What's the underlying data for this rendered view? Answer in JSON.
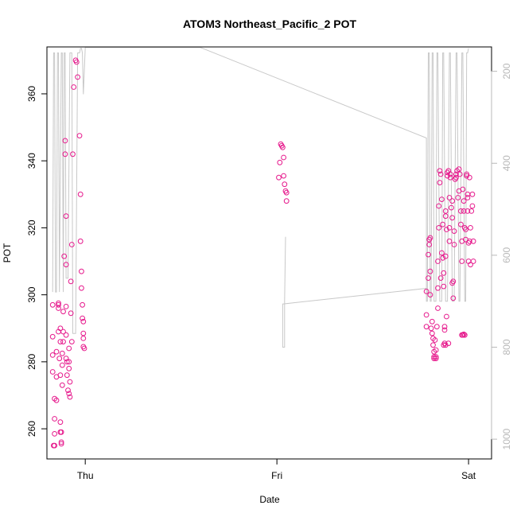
{
  "chart_data": {
    "type": "scatter",
    "title": "ATOM3 Northeast_Pacific_2 POT",
    "xlabel": "Date",
    "ylabel": "POT",
    "x_ticks": [
      {
        "label": "Thu",
        "value": 1.0
      },
      {
        "label": "Fri",
        "value": 2.0
      },
      {
        "label": "Sat",
        "value": 3.0
      }
    ],
    "xlim": [
      0.8,
      3.12
    ],
    "ylim": [
      251,
      374
    ],
    "y_ticks": [
      260,
      280,
      300,
      320,
      340,
      360
    ],
    "right_axis": {
      "ticks": [
        200,
        400,
        600,
        800,
        1000
      ],
      "lim_top": 147,
      "lim_bottom": 1043,
      "color": "#b8b8b8"
    },
    "grid": false,
    "series": [
      {
        "kind": "points",
        "color": "#e6198c",
        "points": [
          [
            0.83,
            297
          ],
          [
            0.83,
            287.5
          ],
          [
            0.83,
            282
          ],
          [
            0.83,
            277
          ],
          [
            0.84,
            269
          ],
          [
            0.84,
            263
          ],
          [
            0.84,
            258.5
          ],
          [
            0.84,
            255
          ],
          [
            0.835,
            255
          ],
          [
            0.85,
            275.5
          ],
          [
            0.85,
            268.5
          ],
          [
            0.85,
            283
          ],
          [
            0.86,
            289
          ],
          [
            0.86,
            297.5
          ],
          [
            0.86,
            297
          ],
          [
            0.86,
            296
          ],
          [
            0.865,
            281
          ],
          [
            0.87,
            290
          ],
          [
            0.87,
            286
          ],
          [
            0.87,
            276
          ],
          [
            0.87,
            262
          ],
          [
            0.87,
            259
          ],
          [
            0.875,
            259
          ],
          [
            0.875,
            256
          ],
          [
            0.875,
            255.5
          ],
          [
            0.88,
            282.5
          ],
          [
            0.88,
            279
          ],
          [
            0.88,
            273
          ],
          [
            0.885,
            295
          ],
          [
            0.885,
            289
          ],
          [
            0.885,
            286
          ],
          [
            0.89,
            311.5
          ],
          [
            0.895,
            346
          ],
          [
            0.895,
            342
          ],
          [
            0.9,
            323.5
          ],
          [
            0.9,
            309
          ],
          [
            0.9,
            296.5
          ],
          [
            0.9,
            288
          ],
          [
            0.9,
            281
          ],
          [
            0.905,
            280
          ],
          [
            0.905,
            276
          ],
          [
            0.91,
            271.5
          ],
          [
            0.915,
            284
          ],
          [
            0.915,
            280
          ],
          [
            0.915,
            278
          ],
          [
            0.915,
            270.5
          ],
          [
            0.92,
            274
          ],
          [
            0.92,
            269.5
          ],
          [
            0.925,
            304
          ],
          [
            0.925,
            294.5
          ],
          [
            0.93,
            315
          ],
          [
            0.93,
            286
          ],
          [
            0.935,
            342
          ],
          [
            0.94,
            362
          ],
          [
            0.95,
            370
          ],
          [
            0.955,
            369.5
          ],
          [
            0.96,
            365
          ],
          [
            0.97,
            347.5
          ],
          [
            0.975,
            330
          ],
          [
            0.975,
            316
          ],
          [
            0.98,
            307
          ],
          [
            0.98,
            302
          ],
          [
            0.985,
            297
          ],
          [
            0.985,
            293
          ],
          [
            0.99,
            292
          ],
          [
            0.99,
            288.5
          ],
          [
            0.99,
            287
          ],
          [
            0.99,
            284.5
          ],
          [
            0.995,
            284
          ],
          [
            2.02,
            345
          ],
          [
            2.025,
            344.5
          ],
          [
            2.03,
            344
          ],
          [
            2.015,
            339.5
          ],
          [
            2.035,
            341
          ],
          [
            2.01,
            335
          ],
          [
            2.035,
            335.5
          ],
          [
            2.04,
            333
          ],
          [
            2.045,
            331
          ],
          [
            2.05,
            330.5
          ],
          [
            2.05,
            328
          ],
          [
            2.78,
            290.5
          ],
          [
            2.78,
            294
          ],
          [
            2.78,
            301
          ],
          [
            2.79,
            305
          ],
          [
            2.79,
            312
          ],
          [
            2.795,
            315
          ],
          [
            2.795,
            316.5
          ],
          [
            2.8,
            317
          ],
          [
            2.8,
            307
          ],
          [
            2.8,
            300
          ],
          [
            2.805,
            290
          ],
          [
            2.81,
            292
          ],
          [
            2.81,
            288.5
          ],
          [
            2.815,
            287
          ],
          [
            2.815,
            285
          ],
          [
            2.82,
            283
          ],
          [
            2.82,
            281.5
          ],
          [
            2.82,
            281
          ],
          [
            2.825,
            286.5
          ],
          [
            2.83,
            283.5
          ],
          [
            2.83,
            281
          ],
          [
            2.83,
            281.5
          ],
          [
            2.835,
            290.5
          ],
          [
            2.84,
            296
          ],
          [
            2.84,
            302
          ],
          [
            2.84,
            310
          ],
          [
            2.845,
            320
          ],
          [
            2.845,
            326.5
          ],
          [
            2.85,
            333.5
          ],
          [
            2.85,
            337
          ],
          [
            2.855,
            336
          ],
          [
            2.855,
            305
          ],
          [
            2.86,
            328.5
          ],
          [
            2.86,
            312.5
          ],
          [
            2.865,
            321
          ],
          [
            2.865,
            311
          ],
          [
            2.87,
            306.5
          ],
          [
            2.87,
            302.5
          ],
          [
            2.875,
            289.5
          ],
          [
            2.875,
            290.5
          ],
          [
            2.88,
            325
          ],
          [
            2.88,
            323.5
          ],
          [
            2.88,
            311.5
          ],
          [
            2.885,
            319.5
          ],
          [
            2.885,
            293.5
          ],
          [
            2.89,
            336.5
          ],
          [
            2.89,
            335.5
          ],
          [
            2.895,
            337
          ],
          [
            2.9,
            329
          ],
          [
            2.9,
            320
          ],
          [
            2.9,
            316
          ],
          [
            2.905,
            336
          ],
          [
            2.905,
            335
          ],
          [
            2.91,
            326
          ],
          [
            2.915,
            328
          ],
          [
            2.915,
            323
          ],
          [
            2.915,
            303.5
          ],
          [
            2.92,
            299
          ],
          [
            2.92,
            304
          ],
          [
            2.925,
            315
          ],
          [
            2.925,
            319
          ],
          [
            2.93,
            334.5
          ],
          [
            2.935,
            336
          ],
          [
            2.935,
            335
          ],
          [
            2.94,
            337
          ],
          [
            2.945,
            329
          ],
          [
            2.95,
            331
          ],
          [
            2.95,
            337.5
          ],
          [
            2.955,
            336
          ],
          [
            2.96,
            325
          ],
          [
            2.96,
            321
          ],
          [
            2.965,
            310
          ],
          [
            2.965,
            316
          ],
          [
            2.97,
            331.5
          ],
          [
            2.975,
            328
          ],
          [
            2.975,
            325
          ],
          [
            2.98,
            320
          ],
          [
            2.985,
            316.5
          ],
          [
            2.985,
            319.5
          ],
          [
            2.99,
            335.5
          ],
          [
            2.99,
            336
          ],
          [
            2.995,
            330
          ],
          [
            2.995,
            329
          ],
          [
            2.995,
            325
          ],
          [
            3.0,
            315.5
          ],
          [
            3.0,
            310
          ],
          [
            3.005,
            335
          ],
          [
            3.005,
            316
          ],
          [
            3.01,
            309
          ],
          [
            3.01,
            320
          ],
          [
            3.015,
            325
          ],
          [
            3.02,
            330
          ],
          [
            3.02,
            326.5
          ],
          [
            3.025,
            310
          ],
          [
            3.025,
            316
          ],
          [
            2.87,
            285
          ],
          [
            2.875,
            285.5
          ],
          [
            2.88,
            285
          ],
          [
            2.895,
            285.5
          ],
          [
            2.965,
            288
          ],
          [
            2.97,
            288
          ],
          [
            2.975,
            288.2
          ],
          [
            2.98,
            288
          ]
        ]
      },
      {
        "kind": "depth-track",
        "axis": "right",
        "color": "#c8c8c8",
        "points": [
          [
            0.83,
            680
          ],
          [
            0.835,
            160
          ],
          [
            0.84,
            160
          ],
          [
            0.845,
            680
          ],
          [
            0.85,
            680
          ],
          [
            0.855,
            160
          ],
          [
            0.86,
            160
          ],
          [
            0.865,
            680
          ],
          [
            0.875,
            160
          ],
          [
            0.88,
            160
          ],
          [
            0.885,
            680
          ],
          [
            0.89,
            160
          ],
          [
            0.895,
            160
          ],
          [
            0.9,
            650
          ],
          [
            0.91,
            650
          ],
          [
            0.92,
            160
          ],
          [
            0.93,
            160
          ],
          [
            0.935,
            770
          ],
          [
            0.95,
            770
          ],
          [
            0.96,
            160
          ],
          [
            0.97,
            160
          ],
          [
            0.975,
            150
          ],
          [
            0.98,
            150
          ],
          [
            0.985,
            160
          ],
          [
            0.99,
            250
          ],
          [
            1.0,
            148
          ],
          [
            1.6,
            148
          ],
          [
            2.78,
            345
          ],
          [
            2.78,
            700
          ],
          [
            2.785,
            700
          ],
          [
            2.79,
            160
          ],
          [
            2.795,
            160
          ],
          [
            2.8,
            700
          ],
          [
            2.805,
            700
          ],
          [
            2.81,
            160
          ],
          [
            2.815,
            160
          ],
          [
            2.82,
            700
          ],
          [
            2.83,
            700
          ],
          [
            2.835,
            160
          ],
          [
            2.84,
            160
          ],
          [
            2.85,
            700
          ],
          [
            2.86,
            700
          ],
          [
            2.865,
            160
          ],
          [
            2.87,
            160
          ],
          [
            2.88,
            700
          ],
          [
            2.89,
            700
          ],
          [
            2.9,
            160
          ],
          [
            2.905,
            160
          ],
          [
            2.915,
            700
          ],
          [
            2.925,
            700
          ],
          [
            2.935,
            160
          ],
          [
            2.94,
            160
          ],
          [
            2.95,
            700
          ],
          [
            2.955,
            700
          ],
          [
            2.965,
            160
          ],
          [
            2.97,
            160
          ],
          [
            2.98,
            700
          ],
          [
            2.985,
            700
          ],
          [
            2.99,
            160
          ],
          [
            2.995,
            160
          ],
          [
            3.0,
            150
          ]
        ]
      },
      {
        "kind": "depth-track",
        "axis": "right",
        "color": "#c8c8c8",
        "points": [
          [
            2.78,
            672
          ],
          [
            2.03,
            706
          ],
          [
            2.03,
            800
          ],
          [
            2.04,
            800
          ],
          [
            2.04,
            700
          ],
          [
            2.045,
            560
          ]
        ]
      }
    ]
  }
}
